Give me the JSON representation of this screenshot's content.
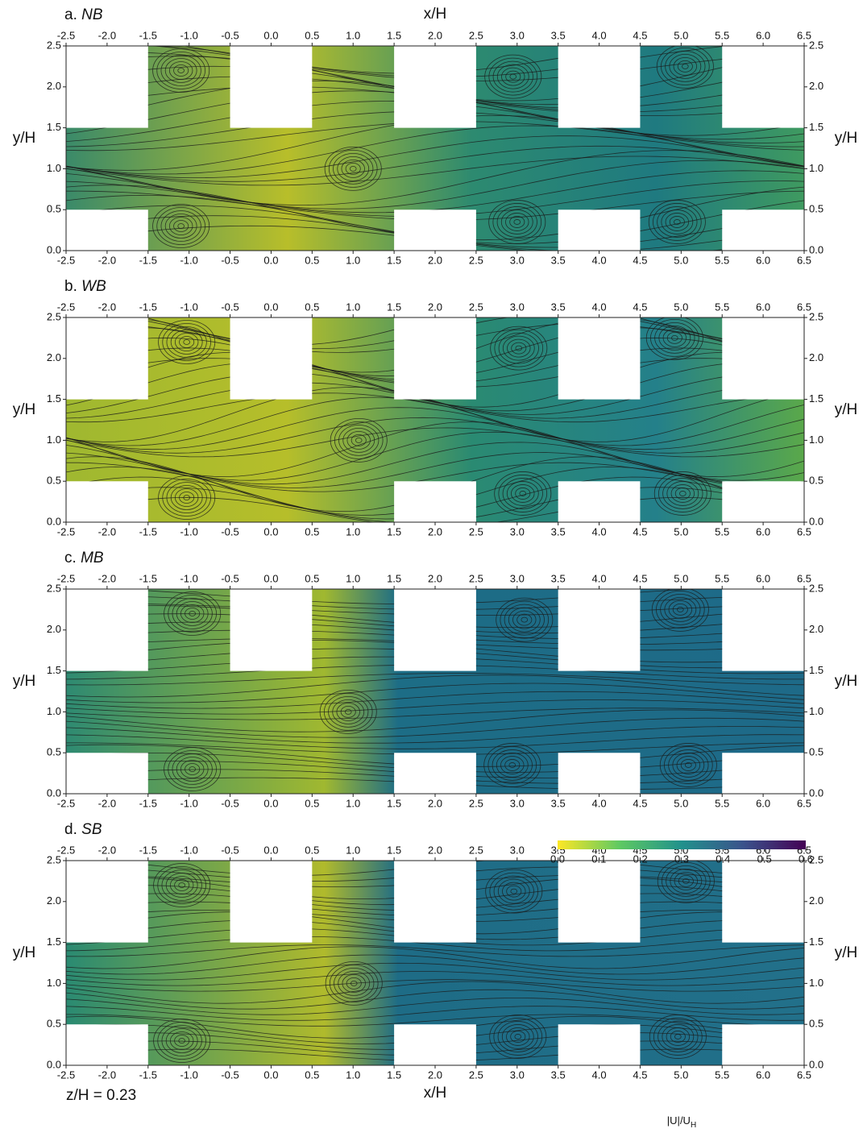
{
  "chart_data": {
    "type": "streamline",
    "xlabel": "x/H",
    "ylabel": "y/H",
    "xlim": [
      -2.5,
      6.5
    ],
    "ylim": [
      0,
      2.5
    ],
    "xticks": [
      -2.5,
      {
        "value": -2,
        "label": "-2.0"
      },
      -1.5,
      {
        "value": -1,
        "label": "-1.0"
      },
      -0.5,
      {
        "value": 0,
        "label": "0.0"
      },
      0.5,
      {
        "value": 1,
        "label": "1.0"
      },
      1.5,
      {
        "value": 2,
        "label": "2.0"
      },
      2.5,
      {
        "value": 3,
        "label": "3.0"
      },
      3.5,
      {
        "value": 4,
        "label": "4.0"
      },
      4.5,
      {
        "value": 5,
        "label": "5.0"
      },
      5.5,
      {
        "value": 6,
        "label": "6.0"
      },
      6.5
    ],
    "yticks": [
      {
        "value": 0,
        "label": "0.0"
      },
      0.5,
      {
        "value": 1,
        "label": "1.0"
      },
      1.5,
      {
        "value": 2,
        "label": "2.0"
      },
      2.5
    ],
    "panels": [
      {
        "label": "a.",
        "title": "NB"
      },
      {
        "label": "b.",
        "title": "WB"
      },
      {
        "label": "c.",
        "title": "MB"
      },
      {
        "label": "d.",
        "title": "SB"
      }
    ],
    "annotation": "z/H = 0.23",
    "colorbar": {
      "label": "|U|/U",
      "label_sub": "H",
      "clim": [
        0,
        0.6
      ],
      "ticks": [
        {
          "value": 0,
          "label": "0.0"
        },
        0.1,
        0.2,
        0.3,
        0.4,
        0.5,
        0.6
      ],
      "colors": [
        "#fde725",
        "#5ec962",
        "#21918c",
        "#3b528b",
        "#440154"
      ]
    }
  }
}
